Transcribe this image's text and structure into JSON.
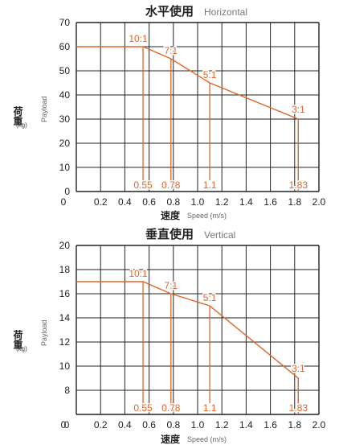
{
  "charts": [
    {
      "title_cn": "水平使用",
      "title_en": "Horizontal",
      "ylabel_cn": "荷重",
      "ylabel_unit": "(kg)",
      "ylabel_en": "Payload",
      "xlabel_cn": "速度",
      "xlabel_en": "Speed (m/s)"
    },
    {
      "title_cn": "垂直使用",
      "title_en": "Vertical",
      "ylabel_cn": "荷重",
      "ylabel_unit": "(kg)",
      "ylabel_en": "Payload",
      "xlabel_cn": "速度",
      "xlabel_en": "Speed (m/s)"
    }
  ],
  "chart_data": [
    {
      "type": "line",
      "title": "水平使用 Horizontal",
      "xlabel": "速度 Speed (m/s)",
      "ylabel": "荷重 (kg) Payload",
      "xlim": [
        0,
        2.0
      ],
      "ylim": [
        0,
        70
      ],
      "x_ticks": [
        "0",
        "0.2",
        "0.4",
        "0.6",
        "0.8",
        "1.0",
        "1.2",
        "1.4",
        "1.6",
        "1.8",
        "2.0"
      ],
      "y_ticks": [
        "0",
        "10",
        "20",
        "30",
        "40",
        "50",
        "60",
        "70"
      ],
      "grid": true,
      "line_color": "#e0662a",
      "series": [
        {
          "x": [
            0,
            0.55,
            0.78,
            1.1,
            1.83,
            1.83
          ],
          "y": [
            60,
            60,
            55,
            45,
            30,
            0
          ]
        }
      ],
      "ratio_markers": [
        {
          "ratio": "10:1",
          "speed": 0.55,
          "speed_label": "0.55",
          "payload": 60
        },
        {
          "ratio": "7:1",
          "speed": 0.78,
          "speed_label": "0.78",
          "payload": 55
        },
        {
          "ratio": "5:1",
          "speed": 1.1,
          "speed_label": "1.1",
          "payload": 45
        },
        {
          "ratio": "3:1",
          "speed": 1.83,
          "speed_label": "1.83",
          "payload": 30
        }
      ]
    },
    {
      "type": "line",
      "title": "垂直使用 Vertical",
      "xlabel": "速度 Speed (m/s)",
      "ylabel": "荷重 (kg) Payload",
      "xlim": [
        0,
        2.0
      ],
      "ylim": [
        6,
        20
      ],
      "x_ticks": [
        "0",
        "0.2",
        "0.4",
        "0.6",
        "0.8",
        "1.0",
        "1.2",
        "1.4",
        "1.6",
        "1.8",
        "2.0"
      ],
      "y_ticks": [
        "8",
        "10",
        "12",
        "14",
        "16",
        "18",
        "20"
      ],
      "y_origin_label": "0",
      "grid": true,
      "line_color": "#e0662a",
      "series": [
        {
          "x": [
            0,
            0.55,
            0.78,
            1.1,
            1.83,
            1.83
          ],
          "y": [
            17,
            17,
            16,
            15,
            9,
            6
          ]
        }
      ],
      "ratio_markers": [
        {
          "ratio": "10:1",
          "speed": 0.55,
          "speed_label": "0.55",
          "payload": 17
        },
        {
          "ratio": "7:1",
          "speed": 0.78,
          "speed_label": "0.78",
          "payload": 16
        },
        {
          "ratio": "5:1",
          "speed": 1.1,
          "speed_label": "1.1",
          "payload": 15
        },
        {
          "ratio": "3:1",
          "speed": 1.83,
          "speed_label": "1.83",
          "payload": 9
        }
      ]
    }
  ]
}
